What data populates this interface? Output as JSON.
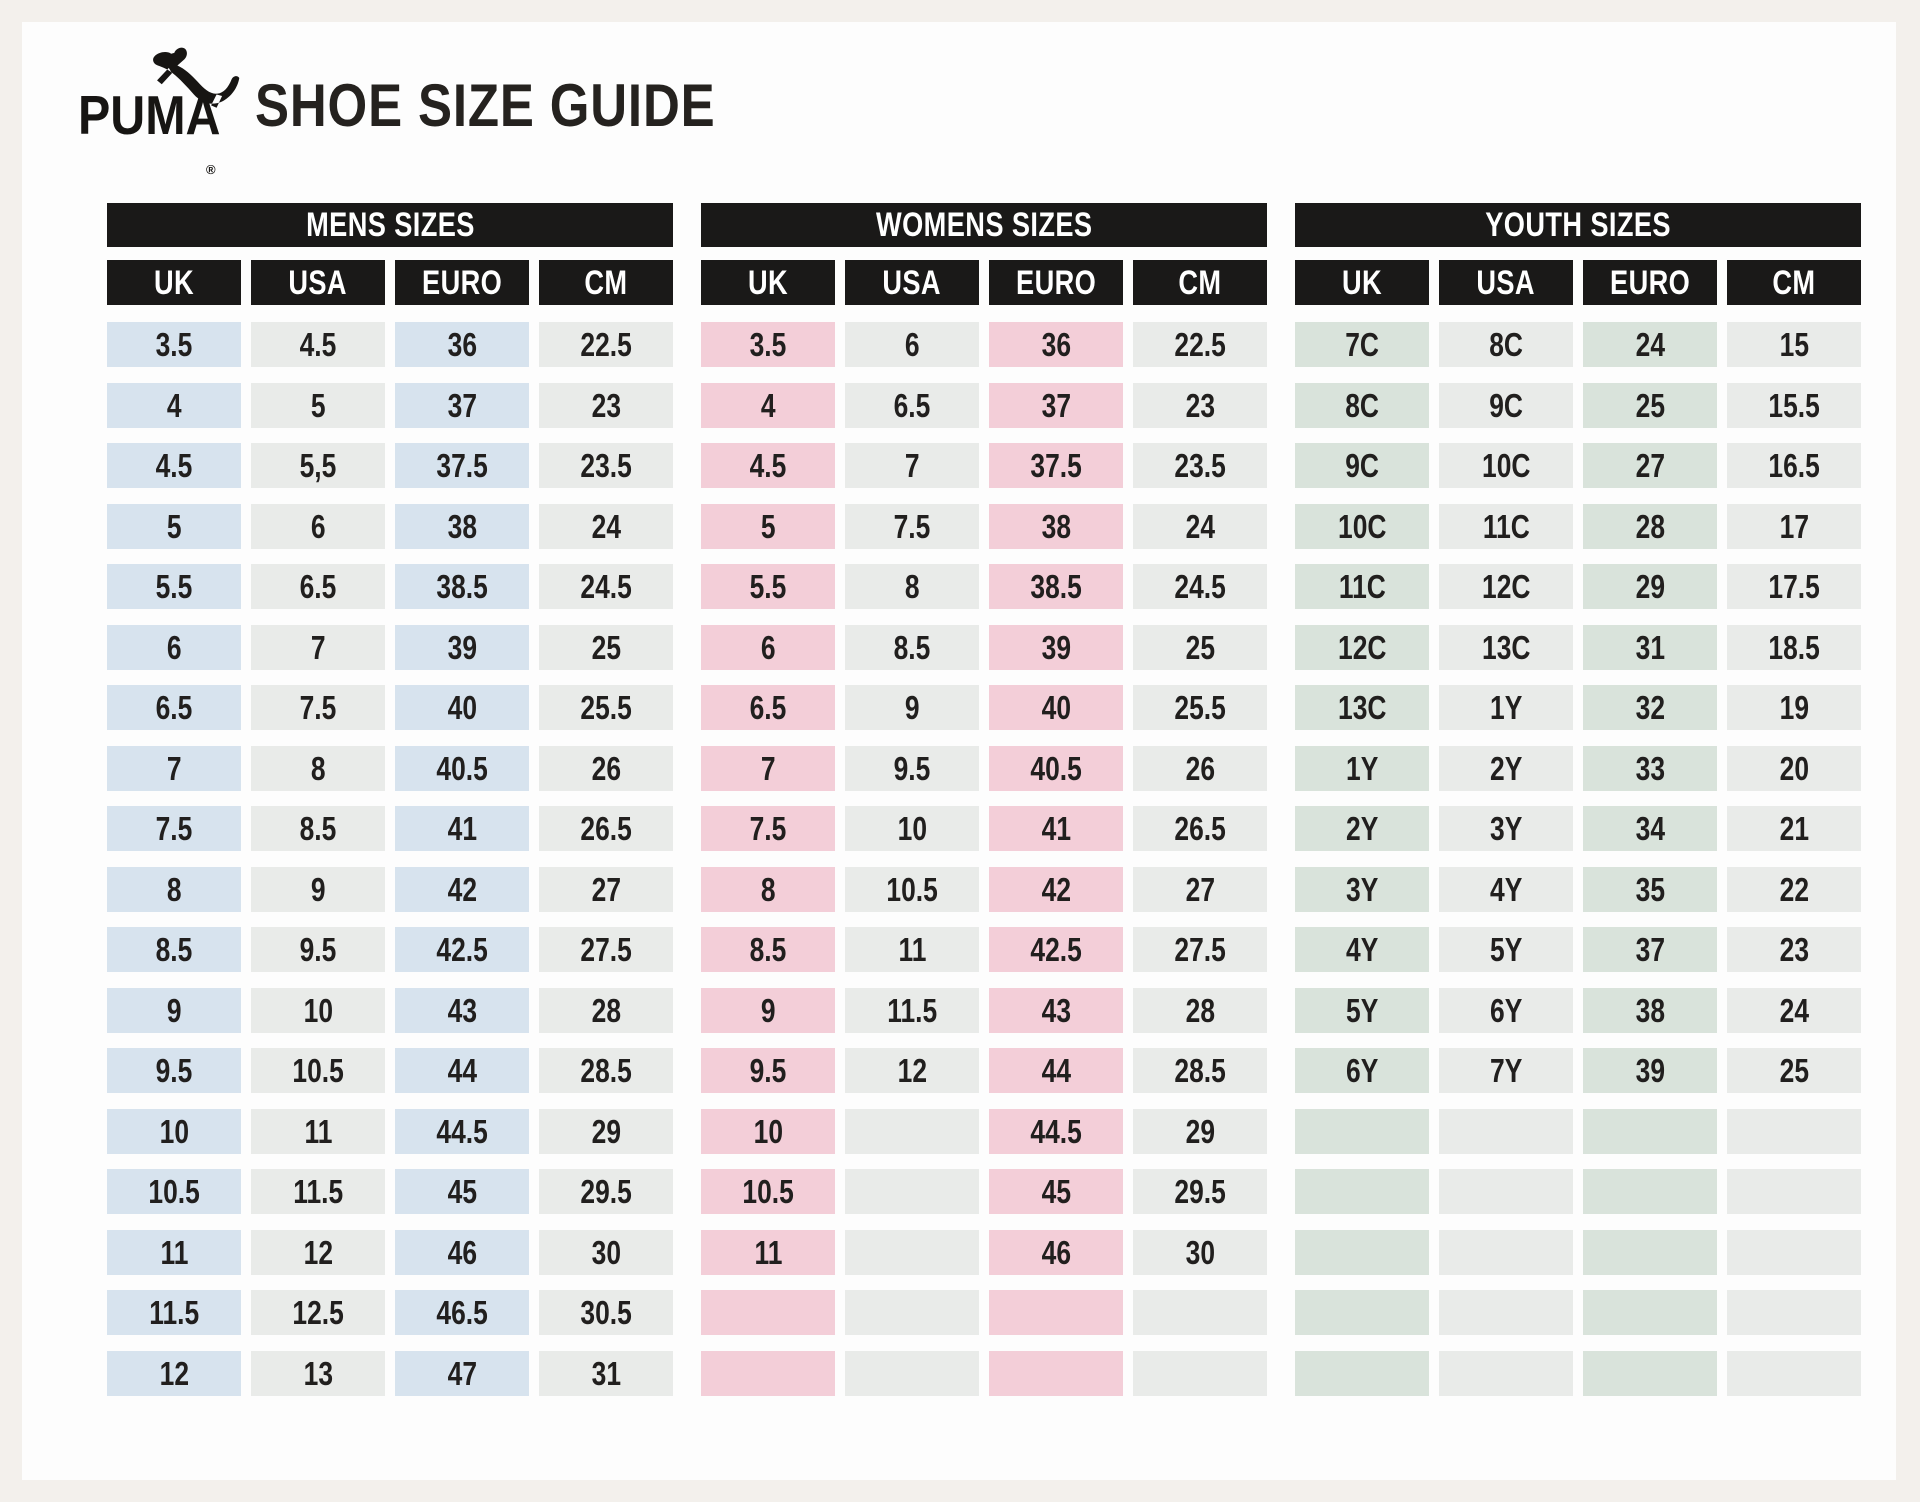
{
  "brand": {
    "logo_text": "PUMA",
    "registered_mark": "®"
  },
  "title": "SHOE SIZE GUIDE",
  "columns": [
    "UK",
    "USA",
    "EURO",
    "CM"
  ],
  "colors": {
    "header_bar": "#1a1918",
    "neutral_cell": "#e9ebe9",
    "mens_accent": "#d7e3ee",
    "womens_accent": "#f3ced8",
    "youth_accent": "#d9e3db",
    "text": "#211f1e",
    "page_frame": "#f3f0ec",
    "panel": "#fdfdfd"
  },
  "tables": [
    {
      "title": "MENS SIZES",
      "accent_color": "#d7e3ee",
      "rows": [
        [
          "3.5",
          "4.5",
          "36",
          "22.5"
        ],
        [
          "4",
          "5",
          "37",
          "23"
        ],
        [
          "4.5",
          "5,5",
          "37.5",
          "23.5"
        ],
        [
          "5",
          "6",
          "38",
          "24"
        ],
        [
          "5.5",
          "6.5",
          "38.5",
          "24.5"
        ],
        [
          "6",
          "7",
          "39",
          "25"
        ],
        [
          "6.5",
          "7.5",
          "40",
          "25.5"
        ],
        [
          "7",
          "8",
          "40.5",
          "26"
        ],
        [
          "7.5",
          "8.5",
          "41",
          "26.5"
        ],
        [
          "8",
          "9",
          "42",
          "27"
        ],
        [
          "8.5",
          "9.5",
          "42.5",
          "27.5"
        ],
        [
          "9",
          "10",
          "43",
          "28"
        ],
        [
          "9.5",
          "10.5",
          "44",
          "28.5"
        ],
        [
          "10",
          "11",
          "44.5",
          "29"
        ],
        [
          "10.5",
          "11.5",
          "45",
          "29.5"
        ],
        [
          "11",
          "12",
          "46",
          "30"
        ],
        [
          "11.5",
          "12.5",
          "46.5",
          "30.5"
        ],
        [
          "12",
          "13",
          "47",
          "31"
        ]
      ]
    },
    {
      "title": "WOMENS SIZES",
      "accent_color": "#f3ced8",
      "rows": [
        [
          "3.5",
          "6",
          "36",
          "22.5"
        ],
        [
          "4",
          "6.5",
          "37",
          "23"
        ],
        [
          "4.5",
          "7",
          "37.5",
          "23.5"
        ],
        [
          "5",
          "7.5",
          "38",
          "24"
        ],
        [
          "5.5",
          "8",
          "38.5",
          "24.5"
        ],
        [
          "6",
          "8.5",
          "39",
          "25"
        ],
        [
          "6.5",
          "9",
          "40",
          "25.5"
        ],
        [
          "7",
          "9.5",
          "40.5",
          "26"
        ],
        [
          "7.5",
          "10",
          "41",
          "26.5"
        ],
        [
          "8",
          "10.5",
          "42",
          "27"
        ],
        [
          "8.5",
          "11",
          "42.5",
          "27.5"
        ],
        [
          "9",
          "11.5",
          "43",
          "28"
        ],
        [
          "9.5",
          "12",
          "44",
          "28.5"
        ],
        [
          "10",
          "",
          "44.5",
          "29"
        ],
        [
          "10.5",
          "",
          "45",
          "29.5"
        ],
        [
          "11",
          "",
          "46",
          "30"
        ],
        [
          "",
          "",
          "",
          ""
        ],
        [
          "",
          "",
          "",
          ""
        ]
      ]
    },
    {
      "title": "YOUTH SIZES",
      "accent_color": "#d9e3db",
      "rows": [
        [
          "7C",
          "8C",
          "24",
          "15"
        ],
        [
          "8C",
          "9C",
          "25",
          "15.5"
        ],
        [
          "9C",
          "10C",
          "27",
          "16.5"
        ],
        [
          "10C",
          "11C",
          "28",
          "17"
        ],
        [
          "11C",
          "12C",
          "29",
          "17.5"
        ],
        [
          "12C",
          "13C",
          "31",
          "18.5"
        ],
        [
          "13C",
          "1Y",
          "32",
          "19"
        ],
        [
          "1Y",
          "2Y",
          "33",
          "20"
        ],
        [
          "2Y",
          "3Y",
          "34",
          "21"
        ],
        [
          "3Y",
          "4Y",
          "35",
          "22"
        ],
        [
          "4Y",
          "5Y",
          "37",
          "23"
        ],
        [
          "5Y",
          "6Y",
          "38",
          "24"
        ],
        [
          "6Y",
          "7Y",
          "39",
          "25"
        ],
        [
          "",
          "",
          "",
          ""
        ],
        [
          "",
          "",
          "",
          ""
        ],
        [
          "",
          "",
          "",
          ""
        ],
        [
          "",
          "",
          "",
          ""
        ],
        [
          "",
          "",
          "",
          ""
        ]
      ]
    }
  ]
}
